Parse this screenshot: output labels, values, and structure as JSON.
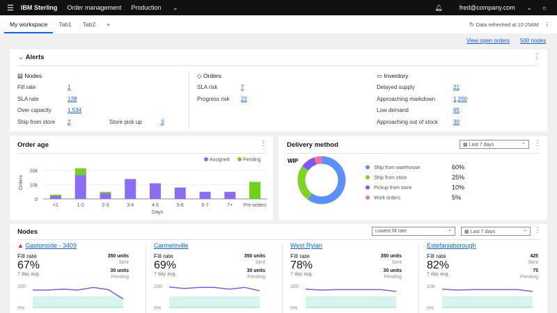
{
  "topbar": {
    "brand": "IBM Sterling",
    "app": "Order management",
    "env": "Production",
    "user": "fred@company.com"
  },
  "tabs": [
    "My workspace",
    "Tab1",
    "Tab2",
    "+"
  ],
  "refresh": "Data refreshed at 10:25AM",
  "links": {
    "open_orders": "View open orders",
    "nodes": "500 nodes"
  },
  "alerts": {
    "title": "Alerts",
    "nodes": {
      "title": "Nodes",
      "items": [
        [
          "Fill rate",
          "1"
        ],
        [
          "SLA rate",
          "128"
        ],
        [
          "Over capacity",
          "1,534"
        ],
        [
          "Ship from store",
          "2"
        ]
      ],
      "extra": [
        "Store pick up",
        "3"
      ]
    },
    "orders": {
      "title": "Orders",
      "items": [
        [
          "SLA risk",
          "7"
        ],
        [
          "Progress risk",
          "22"
        ]
      ]
    },
    "inventory": {
      "title": "Inventory",
      "items": [
        [
          "Delayed supply",
          "21"
        ],
        [
          "Approaching markdown",
          "1,200"
        ],
        [
          "Low demand",
          "65"
        ],
        [
          "Approaching out of stock",
          "30"
        ]
      ]
    }
  },
  "order_age": {
    "title": "Order age"
  },
  "delivery": {
    "title": "Delivery method",
    "range": "Last 7 days",
    "center": "WIP"
  },
  "nodes": {
    "title": "Nodes",
    "sort": "Lowest fill rate",
    "range": "Last 7 days",
    "label": "Fill rate",
    "avg": "7 day avg.",
    "sent": "Sent",
    "pending": "Pending",
    "y_top": "100",
    "y_bottom": "0%",
    "cards": [
      {
        "name": "Gastonside - 3409",
        "alert": true,
        "rate": "67%",
        "sent": "350 units",
        "pend": "30 units",
        "line": [
          78,
          78,
          82,
          78,
          90,
          80,
          38
        ]
      },
      {
        "name": "Carmeloville",
        "alert": false,
        "rate": "69%",
        "sent": "350 units",
        "pend": "30 units",
        "line": [
          92,
          85,
          90,
          90,
          82,
          90,
          75
        ]
      },
      {
        "name": "West Rylan",
        "alert": false,
        "rate": "78%",
        "sent": "350 units",
        "pend": "30 units",
        "line": [
          82,
          78,
          80,
          80,
          80,
          80,
          72
        ]
      },
      {
        "name": "Estefaniaborough",
        "alert": false,
        "rate": "82%",
        "sent": "425",
        "pend": "75",
        "line": [
          82,
          78,
          80,
          80,
          80,
          80,
          72
        ]
      }
    ]
  },
  "chart_data": [
    {
      "type": "bar",
      "title": "Order age",
      "xlabel": "Days",
      "ylabel": "Orders",
      "ylim": [
        0,
        23000
      ],
      "yticks": [
        "0",
        "10k",
        "20k"
      ],
      "categories": [
        "<1",
        "1-2",
        "2-3",
        "3-4",
        "4-5",
        "5-6",
        "6-7",
        "7+",
        "Pre-orders"
      ],
      "series": [
        {
          "name": "Assigned",
          "color": "#8a6cf5",
          "values": [
            2000,
            17000,
            4000,
            14000,
            11000,
            8000,
            5000,
            5000,
            0
          ]
        },
        {
          "name": "Pending",
          "color": "#6fd11c",
          "values": [
            1000,
            4500,
            1000,
            0,
            0,
            0,
            0,
            0,
            12000
          ]
        }
      ],
      "legend": "top-right"
    },
    {
      "type": "pie",
      "title": "Delivery method",
      "categories": [
        "Ship from warehouse",
        "Ship from store",
        "Pickup from store",
        "Work orders"
      ],
      "values": [
        60,
        25,
        10,
        5
      ],
      "labels": [
        "60%",
        "25%",
        "10%",
        "5%"
      ],
      "colors": [
        "#5b8ff9",
        "#7ed321",
        "#7a5af5",
        "#ff6fa0"
      ]
    }
  ]
}
